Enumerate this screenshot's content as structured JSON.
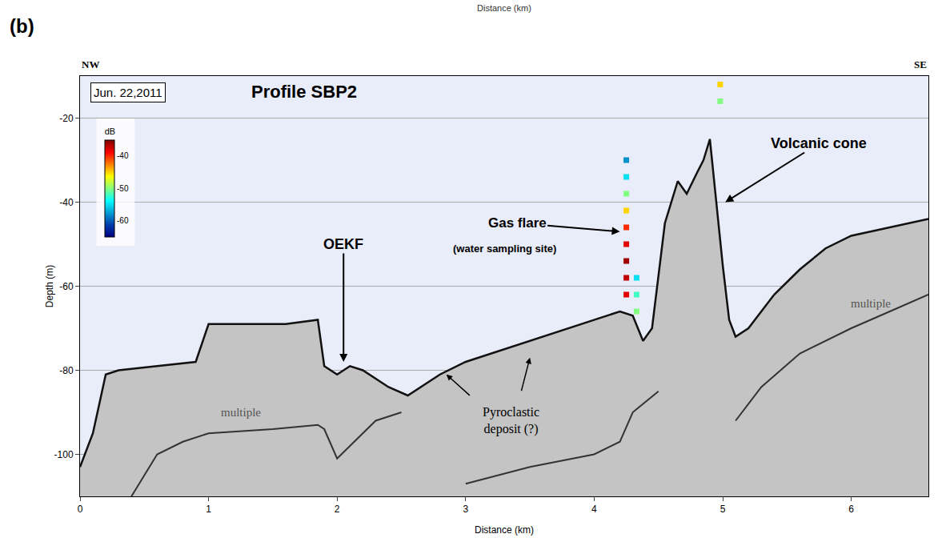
{
  "chart_data": {
    "type": "line",
    "panel": "(b)",
    "upper_axis_label": "Distance (km)",
    "left_end": "NW",
    "right_end": "SE",
    "date": "Jun. 22,2011",
    "title": "Profile SBP2",
    "x_label": "Distance (km)",
    "y_label": "Depth (m)",
    "xlim": [
      0,
      6.6
    ],
    "ylim": [
      -110,
      -10
    ],
    "xticks": [
      0,
      1,
      2,
      3,
      4,
      5,
      6
    ],
    "yticks": [
      -20,
      -40,
      -60,
      -80,
      -100
    ],
    "grid": "y",
    "series": [
      {
        "color": "#111111",
        "x": [
          0,
          0.1,
          0.2,
          0.3,
          0.6,
          0.9,
          1.0,
          1.3,
          1.6,
          1.85,
          1.9,
          2.0,
          2.1,
          2.2,
          2.4,
          2.55,
          2.8,
          3.0,
          3.5,
          4.0,
          4.2,
          4.3,
          4.38,
          4.45,
          4.55,
          4.65,
          4.72,
          4.8,
          4.85,
          4.9,
          4.95,
          5.0,
          5.05,
          5.1,
          5.2,
          5.4,
          5.6,
          5.8,
          6.0,
          6.3,
          6.6
        ],
        "values": [
          -103,
          -95,
          -81,
          -80,
          -79,
          -78,
          -69,
          -69,
          -69,
          -68,
          -79,
          -81,
          -79,
          -80,
          -84,
          -86,
          -81,
          -78,
          -73,
          -68,
          -66,
          -67,
          -73,
          -70,
          -45,
          -35,
          -38,
          -33,
          -30,
          -25,
          -40,
          -55,
          -68,
          -72,
          -70,
          -62,
          -56,
          -51,
          -48,
          -46,
          -44
        ]
      },
      {
        "name": "multiple",
        "color": "#333333",
        "x": [
          0.4,
          0.6,
          0.8,
          1.0,
          1.5,
          1.85,
          1.9,
          2.0,
          2.1,
          2.3,
          2.5,
          null,
          3.0,
          3.5,
          4.0,
          4.2,
          4.3,
          4.5,
          null,
          5.1,
          5.3,
          5.6,
          6.0,
          6.3,
          6.6
        ],
        "values": [
          -110,
          -100,
          -97,
          -95,
          -94,
          -93,
          -94,
          -101,
          -98,
          -92,
          -90,
          null,
          -107,
          -103,
          -100,
          -97,
          -90,
          -85,
          null,
          -92,
          -84,
          -76,
          -70,
          -66,
          -62
        ]
      }
    ],
    "flare": {
      "x": [
        4.25,
        4.25,
        4.25,
        4.25,
        4.25,
        4.25,
        4.25,
        4.25,
        4.25,
        4.33,
        4.33,
        4.33,
        4.98,
        4.98
      ],
      "y": [
        -62,
        -58,
        -54,
        -50,
        -46,
        -42,
        -38,
        -34,
        -30,
        -66,
        -62,
        -58,
        -12,
        -16
      ],
      "values": [
        -38,
        -37,
        -36,
        -38,
        -40,
        -45,
        -50,
        -55,
        -58,
        -50,
        -52,
        -55,
        -45,
        -50
      ],
      "colorbar": {
        "title": "dB",
        "range": [
          -65,
          -35
        ],
        "ticks": [
          -40,
          -50,
          -60
        ]
      }
    },
    "annotations": {
      "oekf": "OEKF",
      "gas_flare": "Gas flare",
      "sampling": "(water sampling site)",
      "cone": "Volcanic cone",
      "pyroclastic": "Pyroclastic deposit (?)"
    }
  }
}
